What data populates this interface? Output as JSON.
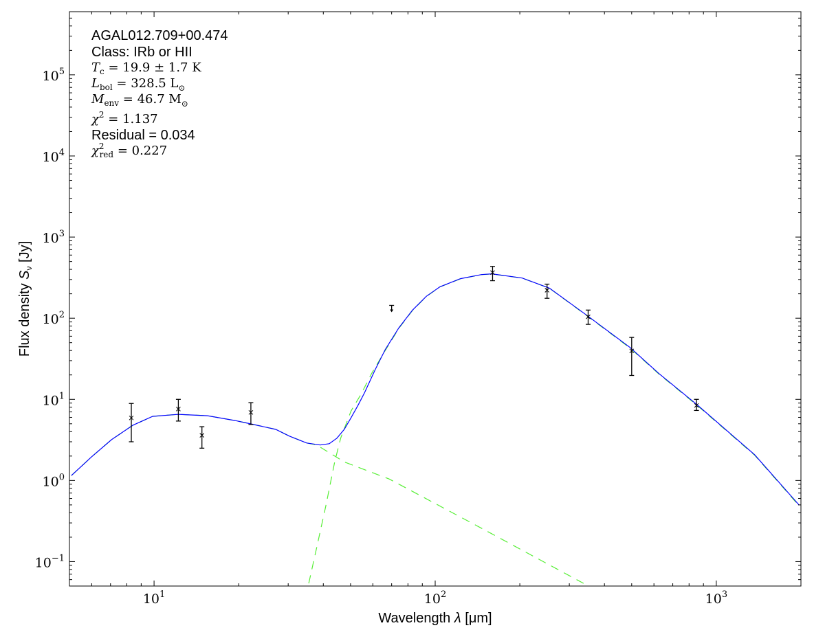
{
  "chart_data": {
    "type": "scatter",
    "title": "",
    "xlabel": "Wavelength λ [μm]",
    "xlabel_parts": {
      "text": "Wavelength ",
      "symbol": "λ",
      "unit": " [μm]"
    },
    "ylabel_parts": {
      "text": "Flux density ",
      "symbol": "S",
      "sub": "ν",
      "unit": " [Jy]"
    },
    "ylabel": "Flux density S_ν [Jy]",
    "xscale": "log",
    "yscale": "log",
    "xlim": [
      5,
      2000
    ],
    "ylim": [
      0.05,
      600000
    ],
    "grid": false,
    "x_ticks": [
      {
        "base": "10",
        "exp": "1",
        "value": 10
      },
      {
        "base": "10",
        "exp": "2",
        "value": 100
      },
      {
        "base": "10",
        "exp": "3",
        "value": 1000
      }
    ],
    "y_ticks": [
      {
        "base": "10",
        "exp": "−1",
        "value": 0.1
      },
      {
        "base": "10",
        "exp": "0",
        "value": 1
      },
      {
        "base": "10",
        "exp": "1",
        "value": 10
      },
      {
        "base": "10",
        "exp": "2",
        "value": 100
      },
      {
        "base": "10",
        "exp": "3",
        "value": 1000
      },
      {
        "base": "10",
        "exp": "4",
        "value": 10000
      },
      {
        "base": "10",
        "exp": "5",
        "value": 100000
      }
    ],
    "points": [
      {
        "x": 8.3,
        "y": 5.9,
        "ylo": 3.0,
        "yhi": 8.9
      },
      {
        "x": 12.2,
        "y": 7.6,
        "ylo": 5.4,
        "yhi": 10.0
      },
      {
        "x": 14.8,
        "y": 3.6,
        "ylo": 2.5,
        "yhi": 4.6
      },
      {
        "x": 22.1,
        "y": 6.9,
        "ylo": 4.9,
        "yhi": 9.1
      },
      {
        "x": 160,
        "y": 365,
        "ylo": 290,
        "yhi": 435
      },
      {
        "x": 250,
        "y": 221,
        "ylo": 176,
        "yhi": 263
      },
      {
        "x": 350,
        "y": 104,
        "ylo": 84,
        "yhi": 126
      },
      {
        "x": 500,
        "y": 39.5,
        "ylo": 19.7,
        "yhi": 58
      },
      {
        "x": 850,
        "y": 8.4,
        "ylo": 7.3,
        "yhi": 10.0
      }
    ],
    "upper_limits": [
      {
        "x": 70,
        "y": 144
      }
    ],
    "series": [
      {
        "style": "solid",
        "color": "#0000ff",
        "points": [
          [
            5.08,
            1.15
          ],
          [
            5.97,
            1.93
          ],
          [
            7.06,
            3.19
          ],
          [
            8.41,
            4.8
          ],
          [
            9.89,
            6.17
          ],
          [
            12.2,
            6.53
          ],
          [
            15.5,
            6.28
          ],
          [
            19.4,
            5.48
          ],
          [
            22.1,
            4.98
          ],
          [
            27.1,
            4.26
          ],
          [
            30.3,
            3.52
          ],
          [
            34.9,
            2.9
          ],
          [
            39.0,
            2.74
          ],
          [
            42.0,
            2.84
          ],
          [
            44.7,
            3.32
          ],
          [
            47.5,
            4.27
          ],
          [
            50.2,
            5.93
          ],
          [
            53.1,
            8.4
          ],
          [
            56.1,
            12.1
          ],
          [
            61.1,
            23.0
          ],
          [
            66.4,
            41.0
          ],
          [
            74.3,
            76.2
          ],
          [
            83.1,
            126
          ],
          [
            93.0,
            186
          ],
          [
            104,
            244
          ],
          [
            123,
            307
          ],
          [
            146,
            345
          ],
          [
            159,
            352
          ],
          [
            204,
            313
          ],
          [
            255,
            235
          ],
          [
            347,
            108
          ],
          [
            493,
            43.6
          ],
          [
            625,
            20.8
          ],
          [
            849,
            8.73
          ],
          [
            1368,
            2.08
          ],
          [
            1968,
            0.5
          ]
        ]
      },
      {
        "style": "dashed",
        "color": "#55ee33",
        "points": [
          [
            5.08,
            1.15
          ],
          [
            5.97,
            1.93
          ],
          [
            7.06,
            3.19
          ],
          [
            8.41,
            4.8
          ],
          [
            9.89,
            6.17
          ],
          [
            12.2,
            6.53
          ],
          [
            15.5,
            6.28
          ],
          [
            19.4,
            5.48
          ],
          [
            22.1,
            4.98
          ],
          [
            27.1,
            4.26
          ],
          [
            30.3,
            3.52
          ],
          [
            34.9,
            2.9
          ],
          [
            37.9,
            2.74
          ],
          [
            47.5,
            1.69
          ],
          [
            68.7,
            1.04
          ],
          [
            146,
            0.258
          ],
          [
            337,
            0.054
          ]
        ]
      },
      {
        "style": "dashed",
        "color": "#55ee33",
        "points": [
          [
            35.5,
            0.054
          ],
          [
            37.9,
            0.15
          ],
          [
            40.8,
            0.48
          ],
          [
            43.9,
            1.69
          ],
          [
            46.1,
            3.32
          ],
          [
            50.2,
            7.19
          ],
          [
            54.6,
            11.7
          ],
          [
            59.4,
            20.8
          ],
          [
            66.4,
            40
          ],
          [
            74.3,
            75
          ],
          [
            83.1,
            125
          ],
          [
            93.0,
            185
          ],
          [
            104,
            243
          ],
          [
            123,
            306
          ],
          [
            146,
            344
          ],
          [
            159,
            351
          ],
          [
            204,
            312
          ],
          [
            255,
            234
          ],
          [
            347,
            107
          ],
          [
            493,
            43
          ],
          [
            625,
            20.5
          ],
          [
            849,
            8.6
          ],
          [
            1368,
            2.05
          ],
          [
            1968,
            0.49
          ]
        ]
      }
    ],
    "annotations": {
      "source": "AGAL012.709+00.474",
      "class": "Class: IRb or HII",
      "tc": {
        "sym": "T",
        "sub": "c",
        "value": " = 19.9 ± 1.7 K"
      },
      "lbol": {
        "sym": "L",
        "sub": "bol",
        "value": " = 328.5 L",
        "unit_sub": "⊙"
      },
      "menv": {
        "sym": "M",
        "sub": "env",
        "value": " = 46.7 M",
        "unit_sub": "⊙"
      },
      "chi2": {
        "sym": "χ",
        "sup": "2",
        "value": " = 1.137"
      },
      "residual": "Residual = 0.034",
      "chi2red": {
        "sym": "χ",
        "sup": "2",
        "sub": "red",
        "value": " = 0.227"
      }
    }
  }
}
